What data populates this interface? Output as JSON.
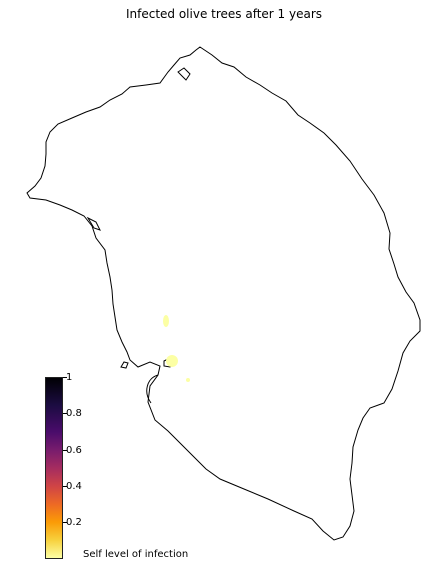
{
  "map": {
    "title": "Infected olive trees after 1 years",
    "outline_color": "#000000",
    "infection_color": "#fcffa4",
    "infected_cluster_count": 3
  },
  "colorbar": {
    "colormap": "inferno",
    "range": [
      0,
      1
    ],
    "ticks": [
      "0.2",
      "0.4",
      "0.6",
      "0.8",
      "1"
    ],
    "label": "Self level of infection"
  }
}
